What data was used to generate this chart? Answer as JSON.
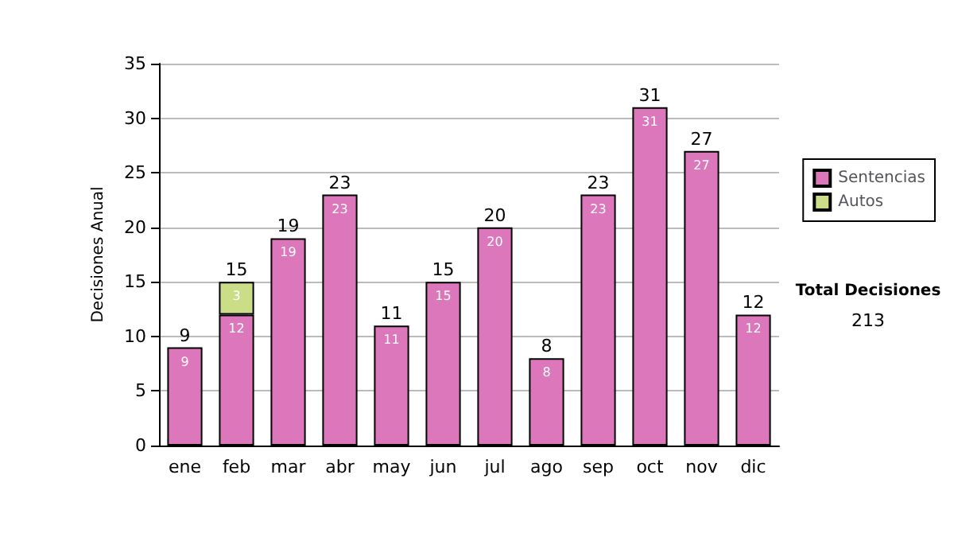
{
  "chart_data": {
    "type": "bar",
    "stacked": true,
    "ylabel": "Decisiones Anual",
    "categories": [
      "ene",
      "feb",
      "mar",
      "abr",
      "may",
      "jun",
      "jul",
      "ago",
      "sep",
      "oct",
      "nov",
      "dic"
    ],
    "series": [
      {
        "name": "Sentencias",
        "color": "#dd77bb",
        "values": [
          9,
          12,
          19,
          23,
          11,
          15,
          20,
          8,
          23,
          31,
          27,
          12
        ]
      },
      {
        "name": "Autos",
        "color": "#ccdd88",
        "values": [
          null,
          3,
          null,
          null,
          null,
          null,
          null,
          null,
          null,
          null,
          null,
          null
        ]
      }
    ],
    "ylim": [
      0,
      35
    ],
    "yticks": [
      0,
      5,
      10,
      15,
      20,
      25,
      30,
      35
    ],
    "grid": "y",
    "legend": "right",
    "data_labels": true,
    "totals": [
      "9",
      "15",
      "19",
      "23",
      "11",
      "15",
      "20",
      "8",
      "23",
      "31",
      "27",
      "12"
    ],
    "annotations": [
      "Total Decisiones",
      "213"
    ]
  }
}
